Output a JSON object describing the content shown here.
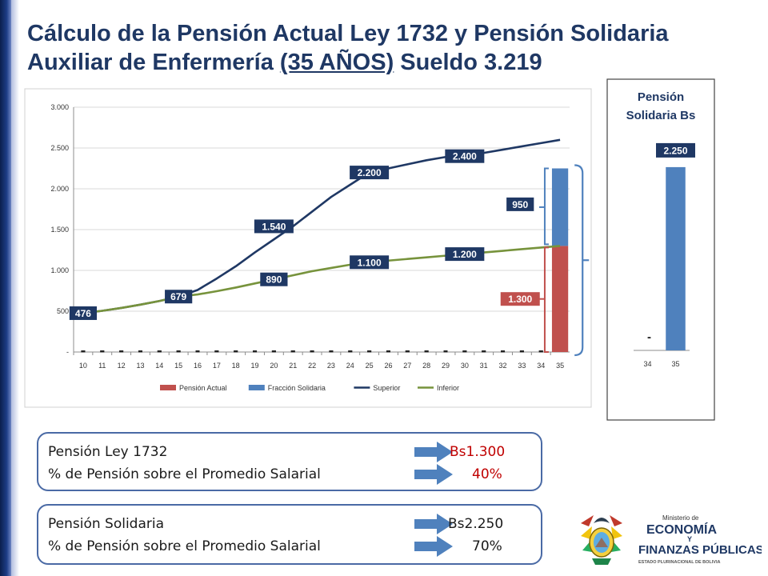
{
  "title": {
    "line1": "Cálculo de la Pensión Actual Ley 1732 y Pensión Solidaria",
    "line2_a": "Auxiliar de Enfermería ",
    "line2_b": "(35 AÑOS)",
    "line2_c": " Sueldo 3.219"
  },
  "chart_data": [
    {
      "type": "bar",
      "categories": [
        "10",
        "11",
        "12",
        "13",
        "14",
        "15",
        "16",
        "17",
        "18",
        "19",
        "20",
        "21",
        "22",
        "23",
        "24",
        "25",
        "26",
        "27",
        "28",
        "29",
        "30",
        "31",
        "32",
        "33",
        "34",
        "35"
      ],
      "ylim": [
        0,
        3000
      ],
      "y_ticks": [
        0,
        500,
        1000,
        1500,
        2000,
        2500,
        3000
      ],
      "y_tick_labels": [
        "-",
        "500",
        "1.000",
        "1.500",
        "2.000",
        "2.500",
        "3.000"
      ],
      "grid": true,
      "legend_position": "bottom",
      "series": [
        {
          "name": "Pensión Actual",
          "kind": "bar",
          "color": "#c0504d",
          "values": [
            0,
            0,
            0,
            0,
            0,
            0,
            0,
            0,
            0,
            0,
            0,
            0,
            0,
            0,
            0,
            0,
            0,
            0,
            0,
            0,
            0,
            0,
            0,
            0,
            0,
            1300
          ]
        },
        {
          "name": "Fracción Solidaria",
          "kind": "bar",
          "color": "#4f81bd",
          "values": [
            0,
            0,
            0,
            0,
            0,
            0,
            0,
            0,
            0,
            0,
            0,
            0,
            0,
            0,
            0,
            0,
            0,
            0,
            0,
            0,
            0,
            0,
            0,
            0,
            0,
            950
          ]
        },
        {
          "name": "Superior",
          "kind": "line",
          "color": "#1f3864",
          "values": [
            476,
            505,
            540,
            580,
            625,
            679,
            760,
            900,
            1050,
            1220,
            1380,
            1540,
            1720,
            1900,
            2050,
            2200,
            2250,
            2300,
            2350,
            2390,
            2400,
            2440,
            2480,
            2520,
            2560,
            2600
          ]
        },
        {
          "name": "Inferior",
          "kind": "line",
          "color": "#77933c",
          "values": [
            476,
            505,
            540,
            580,
            625,
            679,
            705,
            745,
            790,
            840,
            890,
            940,
            990,
            1030,
            1070,
            1100,
            1120,
            1140,
            1160,
            1180,
            1200,
            1220,
            1240,
            1260,
            1280,
            1300
          ]
        }
      ],
      "data_labels": [
        {
          "text": "476",
          "x": "10",
          "y": 476,
          "color": "#1f3864"
        },
        {
          "text": "679",
          "x": "15",
          "y": 679,
          "color": "#1f3864"
        },
        {
          "text": "1.540",
          "x": "20",
          "y": 1540,
          "color": "#1f3864"
        },
        {
          "text": "890",
          "x": "20",
          "y": 890,
          "color": "#1f3864"
        },
        {
          "text": "2.200",
          "x": "25",
          "y": 2200,
          "color": "#1f3864"
        },
        {
          "text": "1.100",
          "x": "25",
          "y": 1100,
          "color": "#1f3864"
        },
        {
          "text": "2.400",
          "x": "30",
          "y": 2400,
          "color": "#1f3864"
        },
        {
          "text": "1.200",
          "x": "30",
          "y": 1200,
          "color": "#1f3864"
        },
        {
          "text": "950",
          "x": "34",
          "y": 1810,
          "color": "#1f3864"
        },
        {
          "text": "1.300",
          "x": "34",
          "y": 650,
          "color": "#c0504d"
        }
      ]
    },
    {
      "type": "bar",
      "title": "Pensión Solidaria Bs",
      "categories": [
        "34",
        "35"
      ],
      "values": [
        0,
        2250
      ],
      "ylim": [
        0,
        2750
      ],
      "grid": false,
      "color": "#4f81bd",
      "data_labels": [
        "-",
        "2.250"
      ]
    }
  ],
  "boxes": [
    {
      "rows": [
        {
          "label": "Pensión Ley 1732",
          "value": "Bs1.300"
        },
        {
          "label": "% de Pensión sobre el Promedio Salarial",
          "value": "40%"
        }
      ],
      "value_color": "#c00000"
    },
    {
      "rows": [
        {
          "label": "Pensión Solidaria",
          "value": "Bs2.250"
        },
        {
          "label": "% de Pensión sobre el Promedio Salarial",
          "value": "70%"
        }
      ],
      "value_color": "#1a1a1a"
    }
  ],
  "logo": {
    "line1": "Ministerio de",
    "line2": "ECONOMÍA",
    "line3": "Y",
    "line4": "FINANZAS PÚBLICAS",
    "line5": "ESTADO PLURINACIONAL DE BOLIVIA"
  },
  "colors": {
    "title": "#1f3864",
    "box_border": "#4a6aa5",
    "arrow": "#4f81bd",
    "bracket_blue": "#4f81bd",
    "bracket_red": "#c0504d"
  }
}
